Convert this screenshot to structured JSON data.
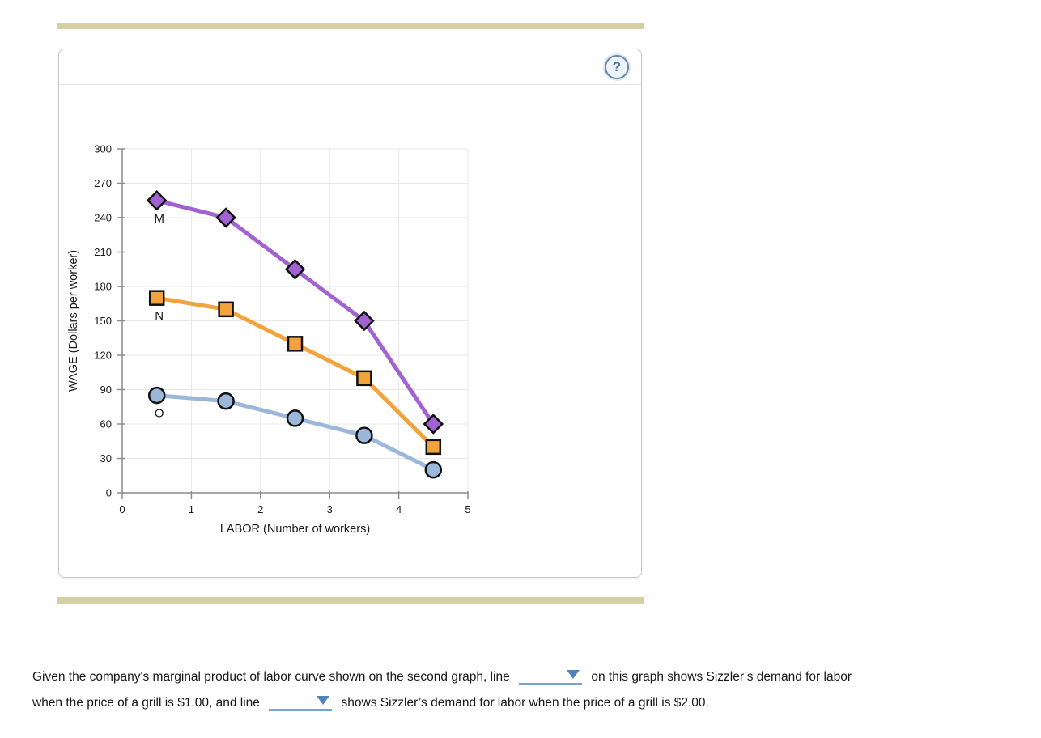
{
  "panel": {
    "help_icon": "?"
  },
  "colors": {
    "accent_bar": "#d7d0a4",
    "series_m_purple": "#a262d2",
    "series_n_orange": "#f3a33b",
    "series_o_blue": "#9bb8da",
    "dropdown_blue": "#4e84ba",
    "dropdown_underline": "#76a3d3",
    "marker_outline": "#111111"
  },
  "question": {
    "line1_before": "Given the company's marginal product of labor curve shown on the second graph, line",
    "line1_after": "on this graph shows Sizzler’s demand for labor",
    "line2_before": "when the price of a grill is $1.00, and line",
    "line2_after": "shows Sizzler’s demand for labor when the price of a grill is $2.00.",
    "dropdown1_value": "",
    "dropdown2_value": ""
  },
  "chart_data": {
    "type": "line",
    "title": "",
    "xlabel": "LABOR (Number of workers)",
    "ylabel": "WAGE (Dollars per worker)",
    "xlim": [
      0,
      5
    ],
    "ylim": [
      0,
      300
    ],
    "x_ticks": [
      0,
      1,
      2,
      3,
      4,
      5
    ],
    "y_ticks": [
      0,
      30,
      60,
      90,
      120,
      150,
      180,
      210,
      240,
      270,
      300
    ],
    "grid": true,
    "legend_position": "inline-labels",
    "x": [
      0.5,
      1.5,
      2.5,
      3.5,
      4.5
    ],
    "series": [
      {
        "name": "M",
        "marker": "diamond",
        "color": "#a262d2",
        "values": [
          255,
          240,
          195,
          150,
          60
        ]
      },
      {
        "name": "N",
        "marker": "square",
        "color": "#f3a33b",
        "values": [
          170,
          160,
          130,
          100,
          40
        ]
      },
      {
        "name": "O",
        "marker": "circle",
        "color": "#9bb8da",
        "values": [
          85,
          80,
          65,
          50,
          20
        ]
      }
    ]
  }
}
